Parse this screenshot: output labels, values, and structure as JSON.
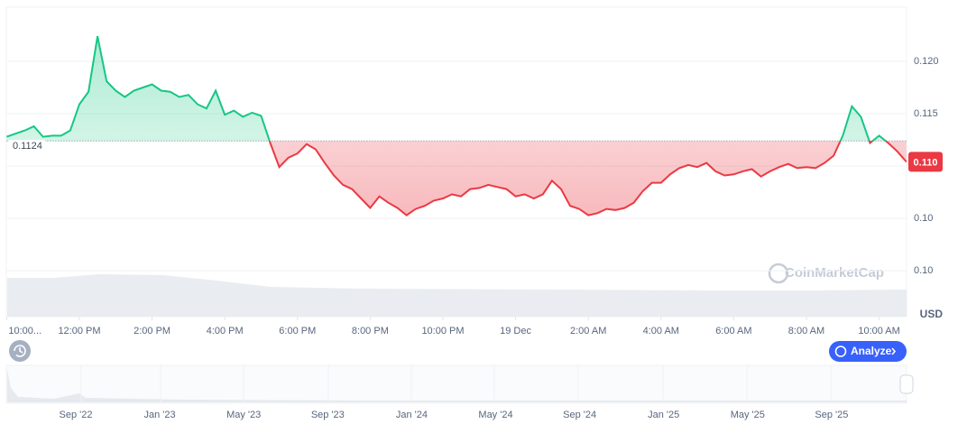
{
  "chart_data": {
    "type": "line",
    "x": [
      0,
      0.25,
      0.5,
      0.75,
      1,
      1.25,
      1.5,
      1.75,
      2,
      2.25,
      2.5,
      2.75,
      3,
      3.25,
      3.5,
      3.75,
      4,
      4.25,
      4.5,
      4.75,
      5,
      5.25,
      5.5,
      5.75,
      6,
      6.25,
      6.5,
      6.75,
      7,
      7.25,
      7.5,
      7.75,
      8,
      8.25,
      8.5,
      8.75,
      9,
      9.25,
      9.5,
      9.75,
      10,
      10.25,
      10.5,
      10.75,
      11,
      11.25,
      11.5,
      11.75,
      12,
      12.25,
      12.5,
      12.75,
      13,
      13.25,
      13.5,
      13.75,
      14,
      14.25,
      14.5,
      14.75,
      15,
      15.25,
      15.5,
      15.75,
      16,
      16.25,
      16.5,
      16.75,
      17,
      17.25,
      17.5,
      17.75,
      18,
      18.25,
      18.5,
      18.75,
      19,
      19.25,
      19.5,
      19.75,
      20,
      20.25,
      20.5,
      20.75,
      21,
      21.25,
      21.5,
      21.75,
      22,
      22.25,
      22.5,
      22.75,
      23,
      23.25,
      23.5,
      23.75,
      24,
      24.25,
      24.5,
      24.75
    ],
    "values": [
      0.1128,
      0.1131,
      0.1134,
      0.1138,
      0.1128,
      0.1129,
      0.1129,
      0.1134,
      0.1159,
      0.1171,
      0.1224,
      0.1181,
      0.1172,
      0.1166,
      0.1172,
      0.1175,
      0.1178,
      0.1172,
      0.1171,
      0.1166,
      0.1168,
      0.1159,
      0.1155,
      0.1172,
      0.1149,
      0.1153,
      0.1147,
      0.1151,
      0.1148,
      0.1122,
      0.1099,
      0.1108,
      0.1112,
      0.1121,
      0.1116,
      0.1103,
      0.1091,
      0.1082,
      0.1078,
      0.1069,
      0.106,
      0.1071,
      0.1065,
      0.106,
      0.1053,
      0.1059,
      0.1062,
      0.1067,
      0.1069,
      0.1073,
      0.1071,
      0.1078,
      0.1079,
      0.1082,
      0.108,
      0.1078,
      0.1071,
      0.1073,
      0.1069,
      0.1073,
      0.1086,
      0.1078,
      0.1062,
      0.1059,
      0.1053,
      0.1055,
      0.1059,
      0.1058,
      0.106,
      0.1065,
      0.1076,
      0.1084,
      0.1084,
      0.1092,
      0.1098,
      0.1101,
      0.1099,
      0.1103,
      0.1095,
      0.1091,
      0.1092,
      0.1095,
      0.1097,
      0.109,
      0.1095,
      0.1099,
      0.1102,
      0.1098,
      0.1099,
      0.1098,
      0.1103,
      0.111,
      0.1129,
      0.1157,
      0.1147,
      0.1122,
      0.1129,
      0.1122,
      0.1114,
      0.1104
    ],
    "xlim": [
      0,
      24.75
    ],
    "xticks": [
      {
        "value": 0,
        "label": "10:00..."
      },
      {
        "value": 2,
        "label": "12:00 PM"
      },
      {
        "value": 4,
        "label": "2:00 PM"
      },
      {
        "value": 6,
        "label": "4:00 PM"
      },
      {
        "value": 8,
        "label": "6:00 PM"
      },
      {
        "value": 10,
        "label": "8:00 PM"
      },
      {
        "value": 12,
        "label": "10:00 PM"
      },
      {
        "value": 14,
        "label": "19 Dec"
      },
      {
        "value": 16,
        "label": "2:00 AM"
      },
      {
        "value": 18,
        "label": "4:00 AM"
      },
      {
        "value": 20,
        "label": "6:00 AM"
      },
      {
        "value": 22,
        "label": "8:00 AM"
      },
      {
        "value": 24,
        "label": "10:00 AM"
      }
    ],
    "ylim": [
      0.0957,
      0.125
    ],
    "yticks": [
      {
        "value": 0.1,
        "label": "0.10"
      },
      {
        "value": 0.105,
        "label": "0.10"
      },
      {
        "value": 0.11,
        "label": ""
      },
      {
        "value": 0.115,
        "label": "0.115"
      },
      {
        "value": 0.12,
        "label": "0.120"
      }
    ],
    "grid": true,
    "colors": {
      "above": "#16c784",
      "below": "#ea3943"
    },
    "baseline": {
      "value": 0.1124,
      "label": "0.1124"
    },
    "current_price": {
      "value": 0.1104,
      "label": "0.110"
    },
    "currency": "USD",
    "watermark": "CoinMarketCap",
    "button": "Analyze",
    "navigator_labels": [
      "Sep '22",
      "Jan '23",
      "May '23",
      "Sep '23",
      "Jan '24",
      "May '24",
      "Sep '24",
      "Jan '25",
      "May '25",
      "Sep '25"
    ]
  }
}
